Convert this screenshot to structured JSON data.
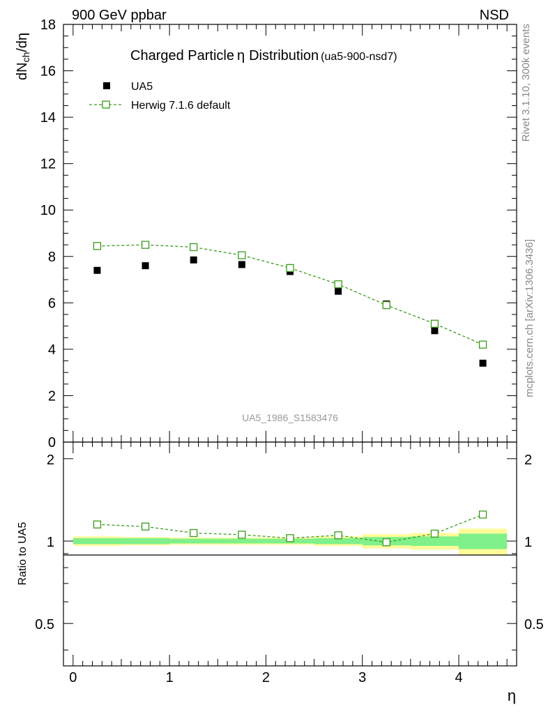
{
  "header": {
    "left": "900 GeV ppbar",
    "right": "NSD"
  },
  "side": {
    "rivet": "Rivet 3.1.10,  300k events",
    "mcplots": "mcplots.cern.ch [arXiv:1306.3436]"
  },
  "colors": {
    "data": "#000000",
    "mc": "#3a9a1a",
    "band_inner": "#7ff08a",
    "band_outer": "#fffb99"
  },
  "chart_data": [
    {
      "type": "scatter",
      "title": "Charged Particle",
      "title_symbol": "η",
      "title_suffix": "Distribution",
      "title_id": "(ua5-900-nsd7)",
      "ylabel": "dN",
      "ylabel_sub": "ch",
      "ylabel_tail": "/dη",
      "watermark": "UA5_1986_S1583476",
      "xlim": [
        -0.1,
        4.6
      ],
      "ylim": [
        0,
        18
      ],
      "grid": false,
      "legend_position": "top-left",
      "yticks": [
        0,
        2,
        4,
        6,
        8,
        10,
        12,
        14,
        16,
        18
      ],
      "ytick_labels": [
        "0",
        "2",
        "4",
        "6",
        "8",
        "10",
        "12",
        "14",
        "16",
        "18"
      ],
      "series": [
        {
          "name": "UA5",
          "marker": "filled-square",
          "x": [
            0.25,
            0.75,
            1.25,
            1.75,
            2.25,
            2.75,
            3.25,
            3.75,
            4.25
          ],
          "y": [
            7.4,
            7.6,
            7.85,
            7.65,
            7.35,
            6.5,
            5.95,
            4.8,
            3.4
          ]
        },
        {
          "name": "Herwig 7.1.6 default",
          "marker": "open-square",
          "line": "dashed",
          "x": [
            0.25,
            0.75,
            1.25,
            1.75,
            2.25,
            2.75,
            3.25,
            3.75,
            4.25
          ],
          "y": [
            8.45,
            8.5,
            8.4,
            8.05,
            7.5,
            6.8,
            5.9,
            5.1,
            4.2
          ]
        }
      ]
    },
    {
      "type": "line",
      "ylabel": "Ratio to UA5",
      "xlabel": "η",
      "xlim": [
        -0.1,
        4.6
      ],
      "ylim": [
        0.35,
        2.3
      ],
      "scale": "log",
      "xticks": [
        0,
        1,
        2,
        3,
        4
      ],
      "xtick_labels": [
        "0",
        "1",
        "2",
        "3",
        "4"
      ],
      "yticks": [
        0.5,
        1,
        2
      ],
      "ytick_labels": [
        "0.5",
        "1",
        "2"
      ],
      "bands": {
        "x_edges": [
          0,
          0.5,
          1,
          1.5,
          2,
          2.5,
          3,
          3.5,
          4,
          4.5
        ],
        "inner": [
          0.025,
          0.025,
          0.02,
          0.02,
          0.02,
          0.025,
          0.035,
          0.04,
          0.065
        ],
        "outer": [
          0.04,
          0.035,
          0.03,
          0.03,
          0.03,
          0.04,
          0.06,
          0.07,
          0.11
        ]
      },
      "series": [
        {
          "name": "Herwig 7.1.6 default",
          "x": [
            0.25,
            0.75,
            1.25,
            1.75,
            2.25,
            2.75,
            3.25,
            3.75,
            4.25
          ],
          "y": [
            1.15,
            1.13,
            1.07,
            1.055,
            1.025,
            1.05,
            0.99,
            1.065,
            1.25
          ]
        }
      ]
    }
  ]
}
